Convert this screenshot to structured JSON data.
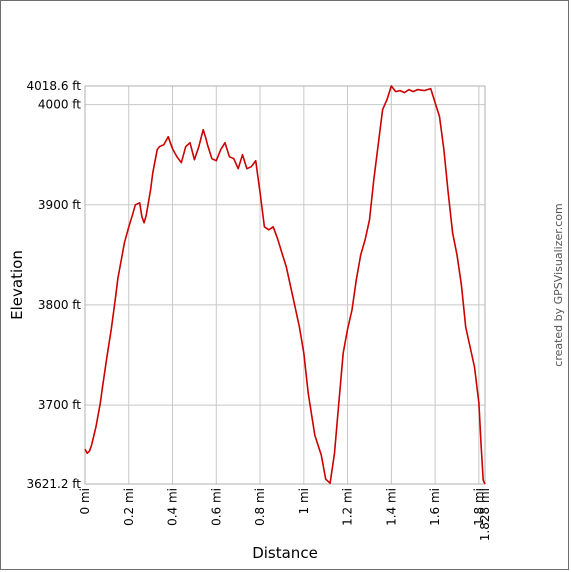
{
  "chart_data": {
    "type": "line",
    "title": "",
    "xlabel": "Distance",
    "ylabel": "Elevation",
    "xlim": [
      0,
      1.828
    ],
    "ylim": [
      3621.2,
      4018.6
    ],
    "x_ticks": [
      {
        "value": 0,
        "label": "0 mi"
      },
      {
        "value": 0.2,
        "label": "0.2 mi"
      },
      {
        "value": 0.4,
        "label": "0.4 mi"
      },
      {
        "value": 0.6,
        "label": "0.6 mi"
      },
      {
        "value": 0.8,
        "label": "0.8 mi"
      },
      {
        "value": 1.0,
        "label": "1 mi"
      },
      {
        "value": 1.2,
        "label": "1.2 mi"
      },
      {
        "value": 1.4,
        "label": "1.4 mi"
      },
      {
        "value": 1.6,
        "label": "1.6 mi"
      },
      {
        "value": 1.8,
        "label": "1.8 mi"
      },
      {
        "value": 1.828,
        "label": "1.828 mi"
      }
    ],
    "y_ticks": [
      {
        "value": 3621.2,
        "label": "3621.2 ft"
      },
      {
        "value": 3700,
        "label": "3700 ft"
      },
      {
        "value": 3800,
        "label": "3800 ft"
      },
      {
        "value": 3900,
        "label": "3900 ft"
      },
      {
        "value": 4000,
        "label": "4000 ft"
      },
      {
        "value": 4018.6,
        "label": "4018.6 ft"
      }
    ],
    "grid": true,
    "line_color": "#cc0000",
    "series": [
      {
        "x": [
          0,
          0.01,
          0.02,
          0.03,
          0.05,
          0.07,
          0.08,
          0.1,
          0.12,
          0.14,
          0.15,
          0.17,
          0.18,
          0.2,
          0.22,
          0.23,
          0.25,
          0.26,
          0.27,
          0.28,
          0.3,
          0.31,
          0.33,
          0.34,
          0.36,
          0.38,
          0.39,
          0.4,
          0.42,
          0.44,
          0.46,
          0.48,
          0.5,
          0.52,
          0.54,
          0.55,
          0.56,
          0.58,
          0.6,
          0.62,
          0.64,
          0.66,
          0.68,
          0.7,
          0.72,
          0.74,
          0.76,
          0.78,
          0.8,
          0.82,
          0.84,
          0.86,
          0.88,
          0.9,
          0.92,
          0.95,
          0.98,
          1.0,
          1.02,
          1.05,
          1.08,
          1.1,
          1.12,
          1.14,
          1.16,
          1.18,
          1.2,
          1.22,
          1.24,
          1.26,
          1.28,
          1.3,
          1.32,
          1.34,
          1.36,
          1.38,
          1.4,
          1.42,
          1.44,
          1.46,
          1.48,
          1.5,
          1.52,
          1.55,
          1.58,
          1.6,
          1.62,
          1.64,
          1.66,
          1.68,
          1.7,
          1.72,
          1.74,
          1.76,
          1.78,
          1.8,
          1.81,
          1.82,
          1.828
        ],
        "y": [
          3656,
          3652,
          3654,
          3660,
          3678,
          3702,
          3718,
          3748,
          3776,
          3808,
          3826,
          3850,
          3862,
          3878,
          3892,
          3900,
          3902,
          3888,
          3882,
          3890,
          3915,
          3932,
          3955,
          3958,
          3960,
          3968,
          3962,
          3956,
          3948,
          3942,
          3958,
          3962,
          3945,
          3958,
          3975,
          3968,
          3960,
          3946,
          3944,
          3955,
          3962,
          3948,
          3946,
          3936,
          3950,
          3936,
          3938,
          3944,
          3912,
          3878,
          3875,
          3878,
          3866,
          3852,
          3838,
          3808,
          3778,
          3752,
          3712,
          3670,
          3650,
          3626,
          3622,
          3652,
          3702,
          3752,
          3776,
          3795,
          3825,
          3850,
          3865,
          3885,
          3925,
          3960,
          3995,
          4005,
          4018.6,
          4013,
          4014,
          4012,
          4015,
          4013,
          4015,
          4014,
          4016,
          4002,
          3988,
          3955,
          3912,
          3872,
          3850,
          3820,
          3778,
          3758,
          3738,
          3702,
          3660,
          3625,
          3621.2
        ]
      }
    ]
  },
  "credit_text": "created by GPSVisualizer.com"
}
